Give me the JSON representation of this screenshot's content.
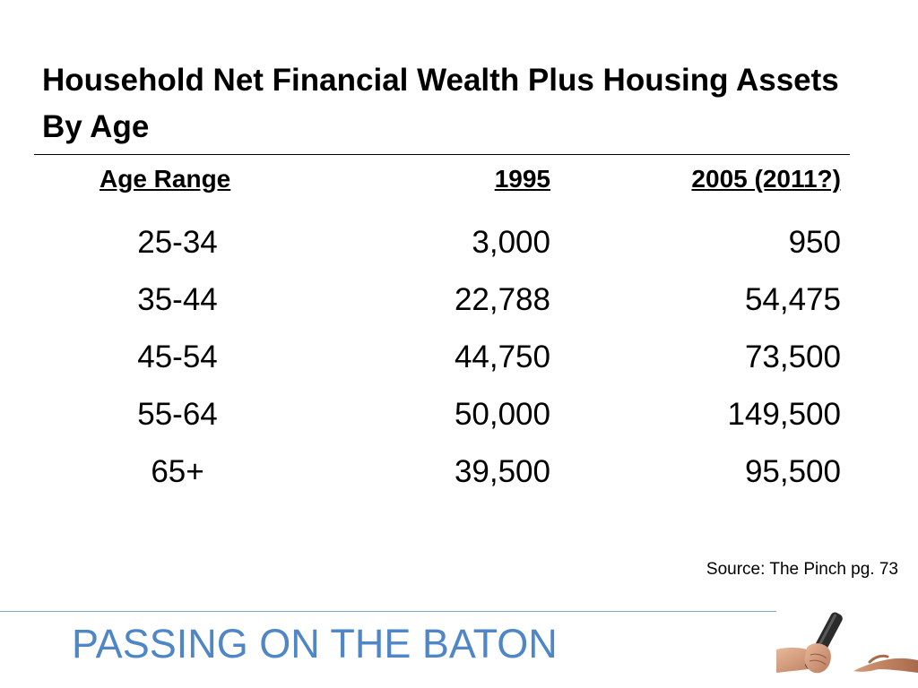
{
  "title": "Household Net Financial Wealth Plus Housing Assets By Age",
  "table": {
    "headers": [
      "Age Range",
      "1995",
      "2005 (2011?)"
    ],
    "rows": [
      [
        "25-34",
        "3,000",
        "950"
      ],
      [
        "35-44",
        "22,788",
        "54,475"
      ],
      [
        "45-54",
        "44,750",
        "73,500"
      ],
      [
        "55-64",
        "50,000",
        "149,500"
      ],
      [
        "65+",
        "39,500",
        "95,500"
      ]
    ]
  },
  "source": "Source: The Pinch pg. 73",
  "footer": {
    "title": "PASSING ON THE BATON"
  },
  "image": {
    "icon": "baton-handoff-photo"
  },
  "colors": {
    "footer_text": "#4f86c6",
    "footer_rule": "#7ea7cf"
  }
}
